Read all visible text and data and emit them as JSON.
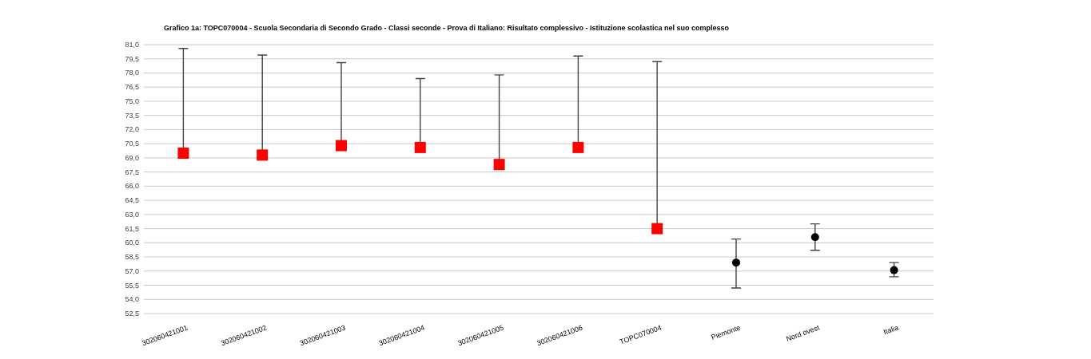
{
  "chart_data": {
    "type": "scatter",
    "title": "Grafico 1a: TOPC070004 - Scuola Secondaria di Secondo Grado - Classi seconde - Prova di Italiano: Risultato complessivo - Istituzione scolastica nel suo complesso",
    "categories": [
      "302060421001",
      "302060421002",
      "302060421003",
      "302060421004",
      "302060421005",
      "302060421006",
      "TOPC070004",
      "Piemonte",
      "Nord ovest",
      "Italia"
    ],
    "series": [
      {
        "color": "#ff0000",
        "marker": "square",
        "values": [
          69.5,
          69.3,
          70.3,
          70.1,
          68.3,
          70.1,
          61.5,
          null,
          null,
          null
        ],
        "errors": [
          [
            69.5,
            80.6
          ],
          [
            69.3,
            79.9
          ],
          [
            70.3,
            79.1
          ],
          [
            70.1,
            77.4
          ],
          [
            68.3,
            77.8
          ],
          [
            70.1,
            79.8
          ],
          [
            61.5,
            79.2
          ],
          null,
          null,
          null
        ]
      },
      {
        "color": "#000000",
        "marker": "circle",
        "values": [
          null,
          null,
          null,
          null,
          null,
          null,
          null,
          57.9,
          60.6,
          57.1
        ],
        "errors": [
          null,
          null,
          null,
          null,
          null,
          null,
          null,
          [
            55.2,
            60.4
          ],
          [
            59.2,
            62.0
          ],
          [
            56.4,
            57.9
          ]
        ]
      }
    ],
    "ylim": [
      52.5,
      81
    ],
    "yticks": [
      {
        "value": 52.5,
        "label": "52,5"
      },
      {
        "value": 54,
        "label": "54,0"
      },
      {
        "value": 55.5,
        "label": "55,5"
      },
      {
        "value": 57,
        "label": "57,0"
      },
      {
        "value": 58.5,
        "label": "58,5"
      },
      {
        "value": 60,
        "label": "60,0"
      },
      {
        "value": 61.5,
        "label": "61,5"
      },
      {
        "value": 63,
        "label": "63,0"
      },
      {
        "value": 64.5,
        "label": "64,5"
      },
      {
        "value": 66,
        "label": "66,0"
      },
      {
        "value": 67.5,
        "label": "67,5"
      },
      {
        "value": 69,
        "label": "69,0"
      },
      {
        "value": 70.5,
        "label": "70,5"
      },
      {
        "value": 72,
        "label": "72,0"
      },
      {
        "value": 73.5,
        "label": "73,5"
      },
      {
        "value": 75,
        "label": "75,0"
      },
      {
        "value": 76.5,
        "label": "76,5"
      },
      {
        "value": 78,
        "label": "78,0"
      },
      {
        "value": 79.5,
        "label": "79,5"
      },
      {
        "value": 81,
        "label": "81,0"
      }
    ],
    "grid": "y"
  }
}
